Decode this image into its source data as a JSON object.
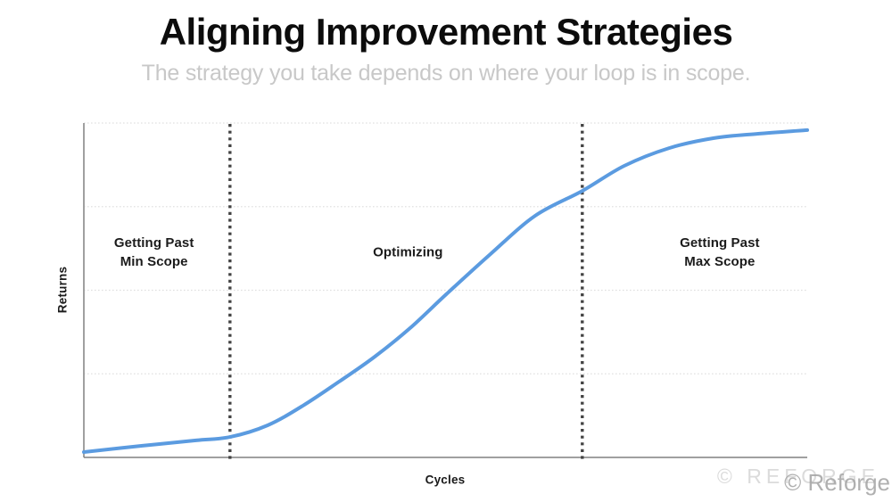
{
  "header": {
    "title": "Aligning Improvement Strategies",
    "subtitle": "The strategy you take depends on where your loop is in scope."
  },
  "chart_data": {
    "type": "line",
    "title": "Aligning Improvement Strategies",
    "xlabel": "Cycles",
    "ylabel": "Returns",
    "x_range": [
      0,
      100
    ],
    "y_range": [
      0,
      100
    ],
    "axes_numeric_ticks": false,
    "grid": "horizontal-dotted",
    "gridlines_y_pct": [
      25,
      50,
      75,
      100
    ],
    "legend": "none",
    "series": [
      {
        "name": "returns-s-curve",
        "color": "#5B9BE0",
        "x": [
          0,
          8.1,
          15.5,
          20.2,
          25.4,
          30.3,
          35.3,
          40.2,
          45.1,
          50.1,
          56.2,
          62.4,
          68.9,
          74.7,
          80.9,
          87.1,
          93.2,
          100
        ],
        "y": [
          1.6,
          3.5,
          5.1,
          6.1,
          9.6,
          15.5,
          22.7,
          30.1,
          38.7,
          48.8,
          60.8,
          72.3,
          79.7,
          87.2,
          92.5,
          95.5,
          96.8,
          97.9
        ]
      }
    ],
    "vlines": [
      {
        "name": "min-scope-boundary",
        "x": 20.2,
        "style": "dotted",
        "color": "#434343"
      },
      {
        "name": "max-scope-boundary",
        "x": 68.9,
        "style": "dotted",
        "color": "#434343"
      }
    ],
    "regions": [
      {
        "label": "Getting Past\nMin Scope",
        "x": 9.7,
        "y": 61.3
      },
      {
        "label": "Optimizing",
        "x": 44.8,
        "y": 61.3
      },
      {
        "label": "Getting Past\nMax Scope",
        "x": 87.9,
        "y": 61.3
      }
    ]
  },
  "colors": {
    "curve": "#5B9BE0",
    "boundary_line": "#434343",
    "gridline": "#e0e0e0",
    "y_axis": "#a0a0a0",
    "x_axis": "#808080",
    "title": "#0c0c0c",
    "subtitle": "#c8c8c8",
    "region_label": "#1b1b1b",
    "watermark_spaced": "#dbdbdb",
    "watermark_solid": "#a3a3a3"
  },
  "watermark": {
    "spaced": "© REFORGE",
    "overlay": "© Reforge"
  }
}
